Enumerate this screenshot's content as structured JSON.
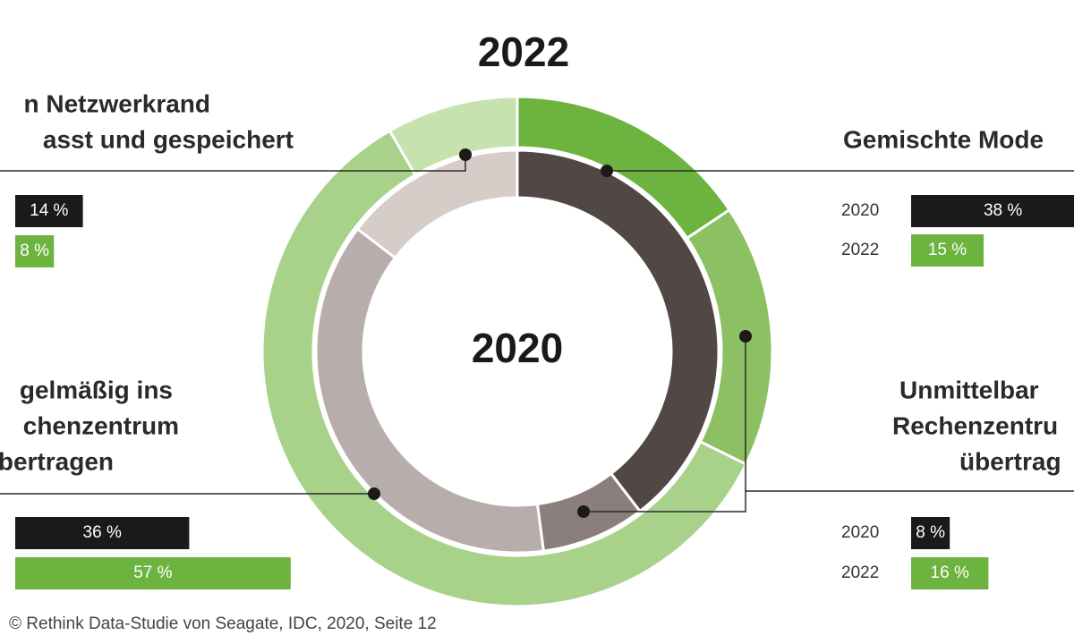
{
  "chart_data": {
    "type": "donut",
    "title": "2022",
    "center_label": "2020",
    "categories": [
      [
        "Gemischte Mode"
      ],
      [
        "Unmittelbar",
        "Rechenzentru",
        "übertrag"
      ],
      [
        "gelmäßig ins",
        "chenzentrum",
        "übertragen"
      ],
      [
        "n Netzwerkrand",
        "asst und gespeichert"
      ]
    ],
    "series": [
      {
        "name": "2020",
        "color": "#1c1a19",
        "colors": [
          "#514745",
          "#8a7f7c",
          "#b7aeab",
          "#d6ccc8"
        ],
        "values": [
          38,
          8,
          36,
          14
        ],
        "value_labels": [
          "38 %",
          "8 %",
          "36 %",
          "14 %"
        ]
      },
      {
        "name": "2022",
        "color": "#6db33f",
        "colors": [
          "#6db33f",
          "#8cc063",
          "#a8d18a",
          "#c6e2ad"
        ],
        "values": [
          15,
          16,
          57,
          8
        ],
        "value_labels": [
          "15 %",
          "16 %",
          "57 %",
          "8 %"
        ]
      }
    ],
    "source": "© Rethink Data-Studie von Seagate, IDC, 2020, Seite 12"
  }
}
